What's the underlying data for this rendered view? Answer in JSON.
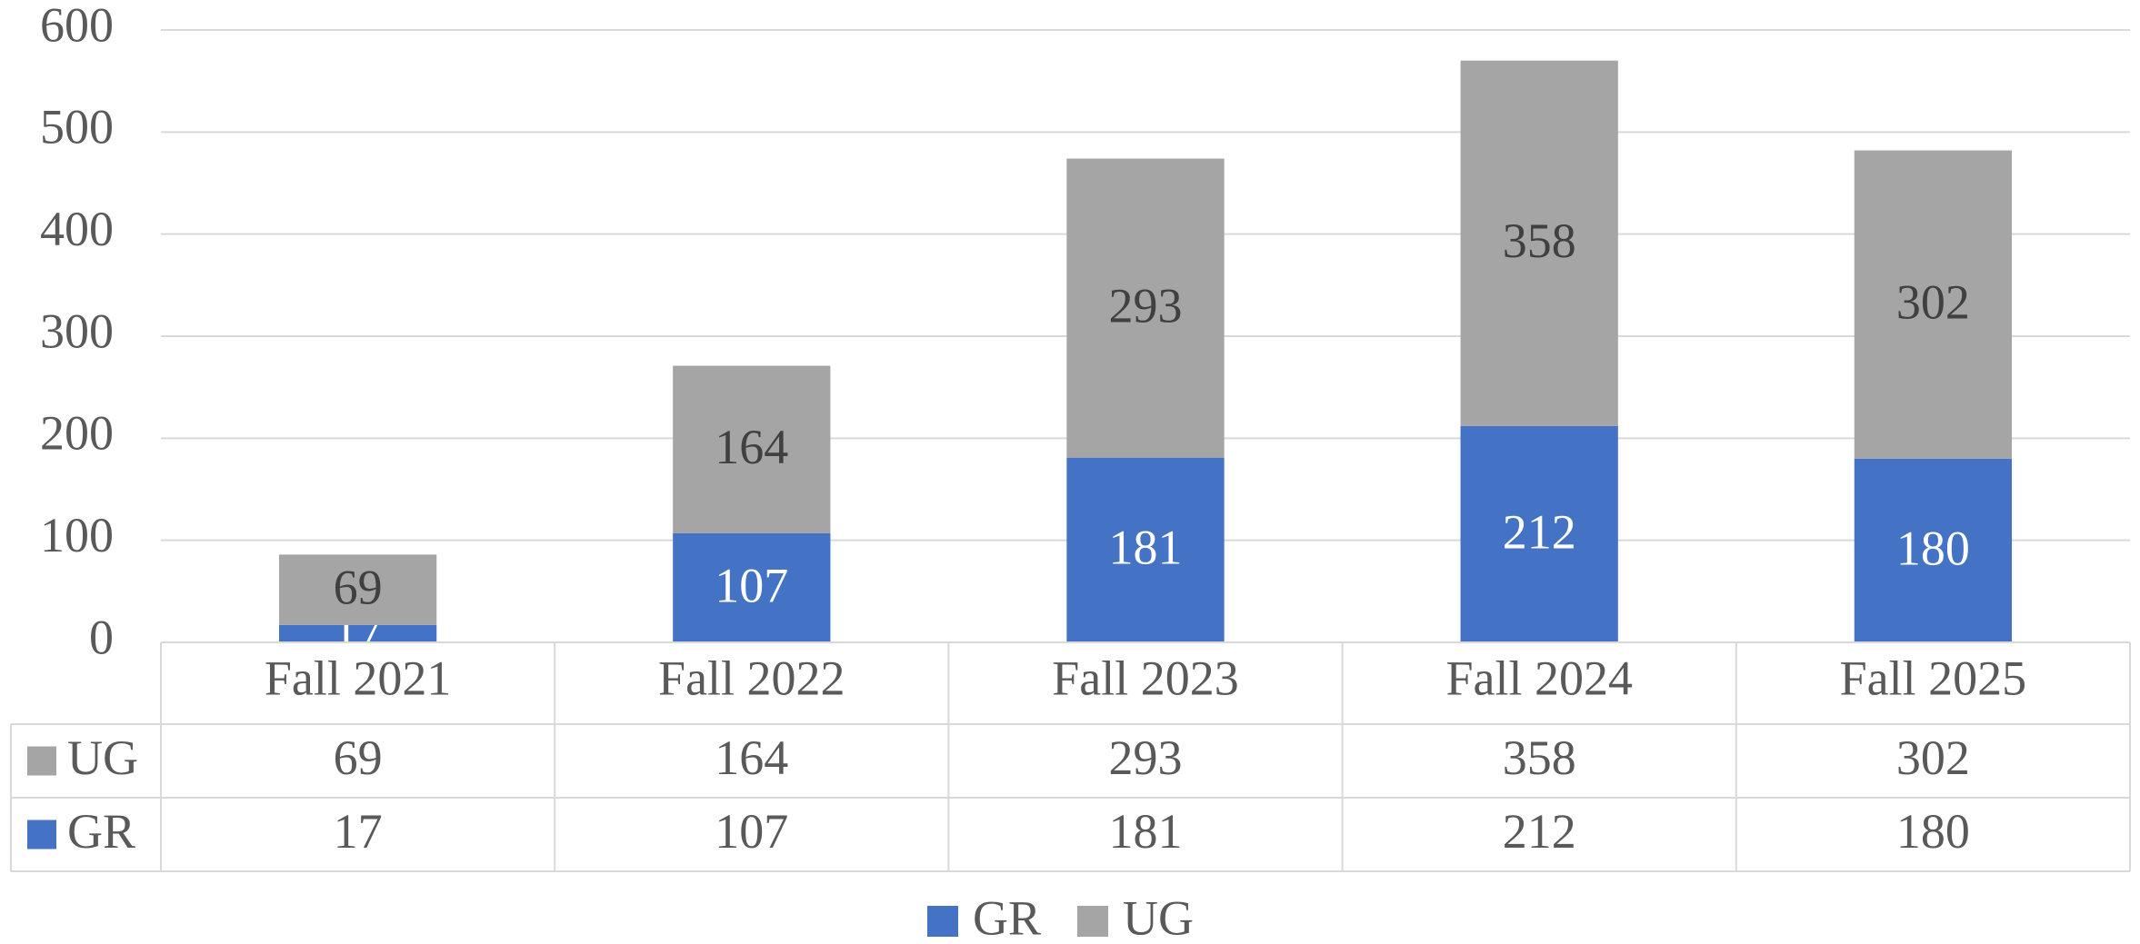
{
  "chart_data": {
    "type": "bar",
    "stacked": true,
    "categories": [
      "Fall 2021",
      "Fall 2022",
      "Fall 2023",
      "Fall 2024",
      "Fall 2025"
    ],
    "series": [
      {
        "name": "GR",
        "color": "#4472c4",
        "values": [
          17,
          107,
          181,
          212,
          180
        ]
      },
      {
        "name": "UG",
        "color": "#a5a5a5",
        "values": [
          69,
          164,
          293,
          358,
          302
        ]
      }
    ],
    "ylim": [
      0,
      600
    ],
    "yticks": [
      0,
      100,
      200,
      300,
      400,
      500,
      600
    ],
    "grid": true,
    "legend": "bottom",
    "data_table": true
  }
}
